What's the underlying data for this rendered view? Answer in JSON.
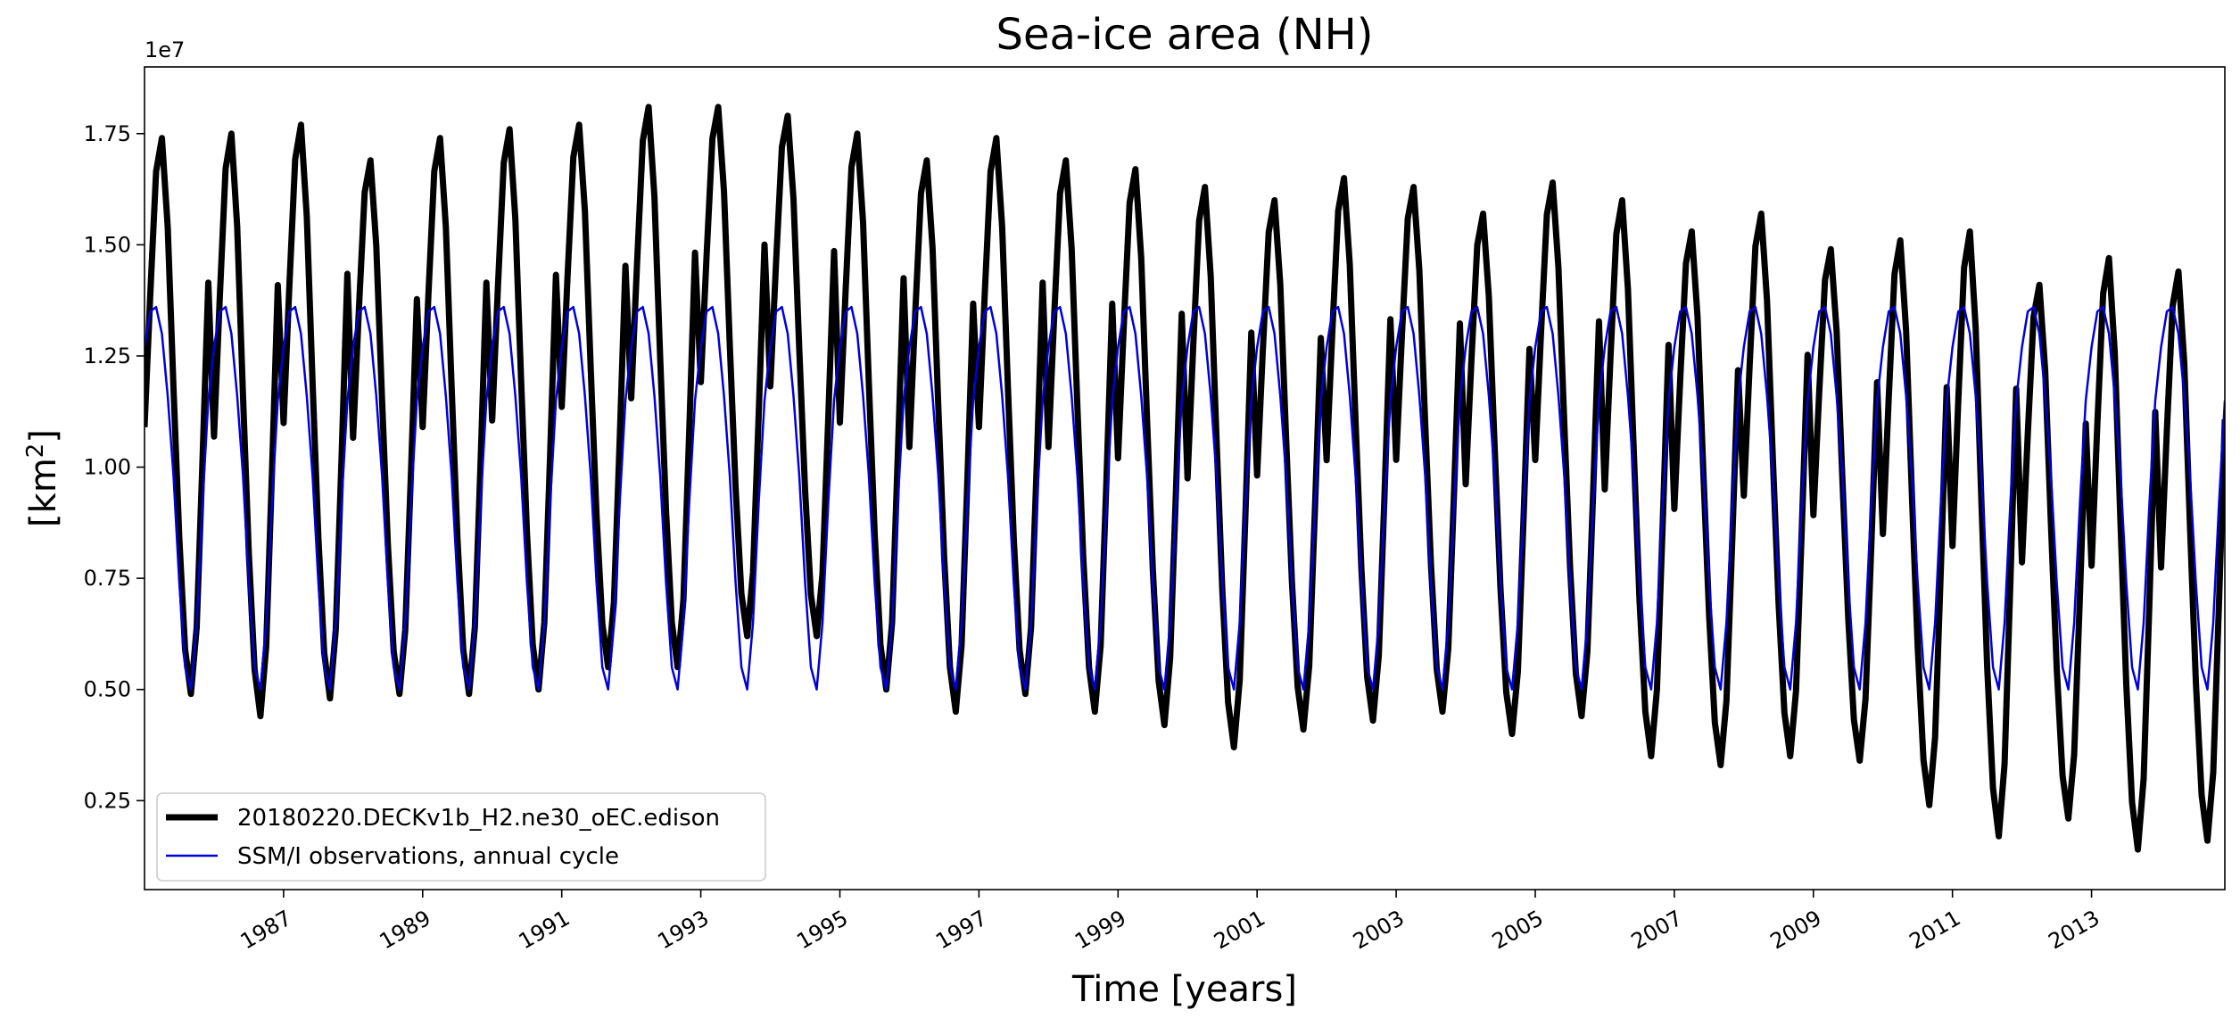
{
  "chart_data": {
    "type": "line",
    "title": "Sea-ice area (NH)",
    "xlabel": "Time [years]",
    "ylabel_base": "[km",
    "ylabel_sup": "2",
    "ylabel_end": "]",
    "offset_text": "1e7",
    "xlim": [
      1985.0,
      2014.917
    ],
    "ylim": [
      0.05,
      1.9
    ],
    "y_scale": 10000000,
    "y_ticks": [
      0.25,
      0.5,
      0.75,
      1.0,
      1.25,
      1.5,
      1.75
    ],
    "y_tick_labels": [
      "0.25",
      "0.50",
      "0.75",
      "1.00",
      "1.25",
      "1.50",
      "1.75"
    ],
    "x_ticks": [
      1987,
      1989,
      1991,
      1993,
      1995,
      1997,
      1999,
      2001,
      2003,
      2005,
      2007,
      2009,
      2011,
      2013
    ],
    "x_tick_labels": [
      "1987",
      "1989",
      "1991",
      "1993",
      "1995",
      "1997",
      "1999",
      "2001",
      "2003",
      "2005",
      "2007",
      "2009",
      "2011",
      "2013"
    ],
    "start_year": 1985,
    "legend_position": "lower-left",
    "series": [
      {
        "name": "20180220.DECKv1b_H2.ne30_oEC.edison",
        "color": "#000000",
        "style": "thick",
        "annual_max": [
          1.74,
          1.75,
          1.77,
          1.69,
          1.74,
          1.76,
          1.77,
          1.81,
          1.81,
          1.79,
          1.75,
          1.69,
          1.74,
          1.69,
          1.67,
          1.63,
          1.6,
          1.65,
          1.63,
          1.57,
          1.64,
          1.6,
          1.53,
          1.57,
          1.49,
          1.51,
          1.53,
          1.41,
          1.47,
          1.44
        ],
        "annual_min": [
          0.49,
          0.44,
          0.48,
          0.49,
          0.49,
          0.5,
          0.55,
          0.55,
          0.62,
          0.62,
          0.5,
          0.45,
          0.49,
          0.45,
          0.42,
          0.37,
          0.41,
          0.43,
          0.45,
          0.4,
          0.44,
          0.35,
          0.33,
          0.35,
          0.34,
          0.24,
          0.17,
          0.21,
          0.14,
          0.16
        ]
      },
      {
        "name": "SSM/I observations, annual cycle",
        "color": "#0000dd",
        "style": "thin",
        "monthly_cycle": [
          1.27,
          1.35,
          1.36,
          1.3,
          1.16,
          0.98,
          0.74,
          0.55,
          0.5,
          0.65,
          0.92,
          1.15
        ]
      }
    ]
  }
}
